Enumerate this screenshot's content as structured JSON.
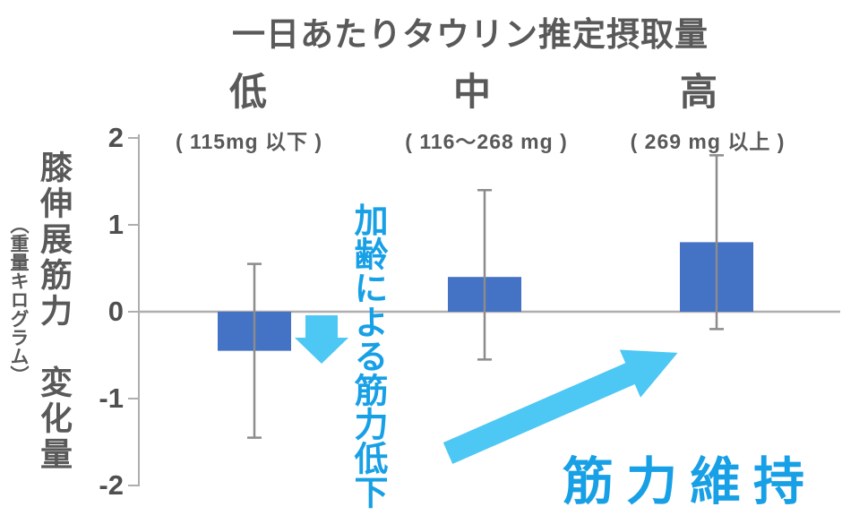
{
  "colors": {
    "heading_gray": "#595959",
    "tick_gray": "#4f4f4f",
    "axis_gray": "#b0adad",
    "error_gray": "#8c8c8c",
    "arrow_cyan": "#4dc7f4",
    "annotation_blue": "#18a0e6"
  },
  "chart_data": {
    "type": "bar",
    "title": "一日あたりタウリン推定摂取量",
    "categories": [
      "低",
      "中",
      "高"
    ],
    "category_sublabels": [
      "( 115mg 以下 )",
      "( 116～268 mg )",
      "( 269 mg 以上 )"
    ],
    "values": [
      -0.45,
      0.4,
      0.8
    ],
    "error_high": [
      0.55,
      1.4,
      1.8
    ],
    "error_low": [
      -1.45,
      -0.55,
      -0.2
    ],
    "ylabel": "膝伸展筋力　変化量",
    "ylabel_unit": "（重量キログラム）",
    "ylim": [
      -2,
      2
    ],
    "yticks": [
      2,
      1,
      0,
      -1,
      -2
    ],
    "ytick_labels": [
      "2",
      "1",
      "0",
      "-1",
      "-2"
    ],
    "bar_color": "#4472c4",
    "grid": false,
    "legend": false
  },
  "annotations": {
    "decline_label": "加齢による筋力低下",
    "maintain_label": "筋力維持"
  }
}
